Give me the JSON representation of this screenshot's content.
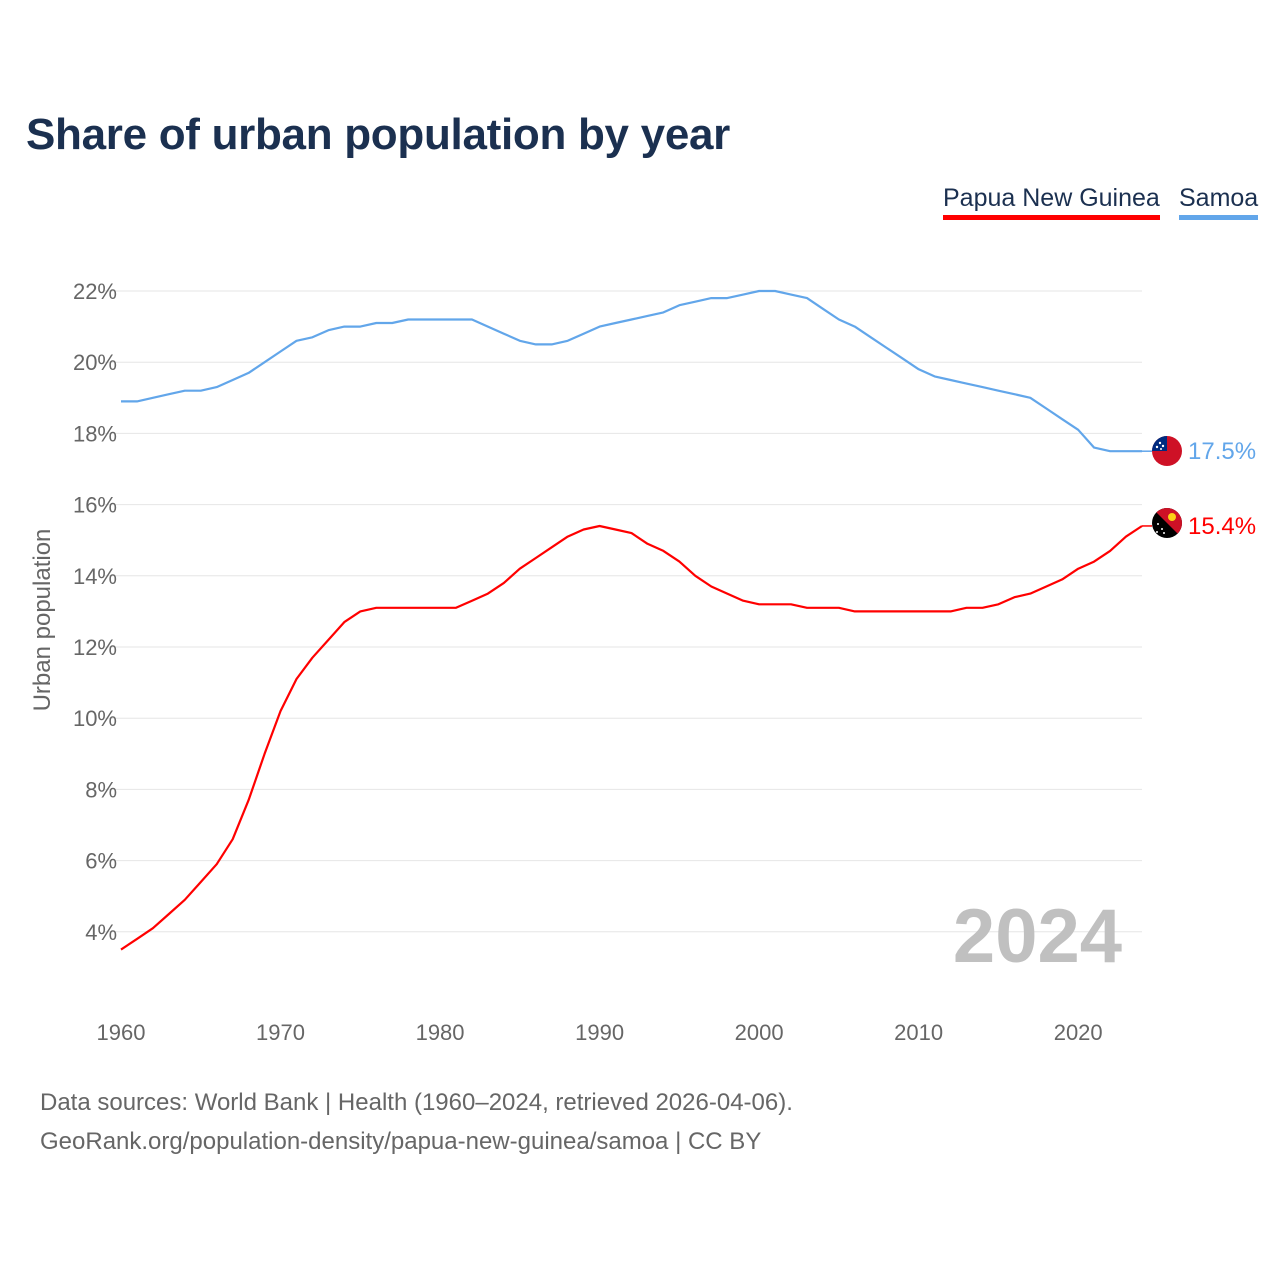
{
  "chart_data": {
    "type": "line",
    "title": "Share of urban population by year",
    "xlabel": "",
    "ylabel": "Urban population",
    "xlim": [
      1960,
      2024
    ],
    "ylim": [
      2,
      23
    ],
    "x_ticks": [
      "1960",
      "1970",
      "1980",
      "1990",
      "2000",
      "2010",
      "2020"
    ],
    "y_ticks": [
      "4%",
      "6%",
      "8%",
      "10%",
      "12%",
      "14%",
      "16%",
      "18%",
      "20%",
      "22%"
    ],
    "grid": true,
    "legend_position": "top-right",
    "year_label": "2024",
    "x": [
      1960,
      1961,
      1962,
      1963,
      1964,
      1965,
      1966,
      1967,
      1968,
      1969,
      1970,
      1971,
      1972,
      1973,
      1974,
      1975,
      1976,
      1977,
      1978,
      1979,
      1980,
      1981,
      1982,
      1983,
      1984,
      1985,
      1986,
      1987,
      1988,
      1989,
      1990,
      1991,
      1992,
      1993,
      1994,
      1995,
      1996,
      1997,
      1998,
      1999,
      2000,
      2001,
      2002,
      2003,
      2004,
      2005,
      2006,
      2007,
      2008,
      2009,
      2010,
      2011,
      2012,
      2013,
      2014,
      2015,
      2016,
      2017,
      2018,
      2019,
      2020,
      2021,
      2022,
      2023,
      2024
    ],
    "series": [
      {
        "name": "Papua New Guinea",
        "color": "#ff0000",
        "end_label": "15.4%",
        "values": [
          3.5,
          3.8,
          4.1,
          4.5,
          4.9,
          5.4,
          5.9,
          6.6,
          7.7,
          9.0,
          10.2,
          11.1,
          11.7,
          12.2,
          12.7,
          13.0,
          13.1,
          13.1,
          13.1,
          13.1,
          13.1,
          13.1,
          13.3,
          13.5,
          13.8,
          14.2,
          14.5,
          14.8,
          15.1,
          15.3,
          15.4,
          15.3,
          15.2,
          14.9,
          14.7,
          14.4,
          14.0,
          13.7,
          13.5,
          13.3,
          13.2,
          13.2,
          13.2,
          13.1,
          13.1,
          13.1,
          13.0,
          13.0,
          13.0,
          13.0,
          13.0,
          13.0,
          13.0,
          13.1,
          13.1,
          13.2,
          13.4,
          13.5,
          13.7,
          13.9,
          14.2,
          14.4,
          14.7,
          15.1,
          15.4
        ]
      },
      {
        "name": "Samoa",
        "color": "#62a6ea",
        "end_label": "17.5%",
        "values": [
          18.9,
          18.9,
          19.0,
          19.1,
          19.2,
          19.2,
          19.3,
          19.5,
          19.7,
          20.0,
          20.3,
          20.6,
          20.7,
          20.9,
          21.0,
          21.0,
          21.1,
          21.1,
          21.2,
          21.2,
          21.2,
          21.2,
          21.2,
          21.0,
          20.8,
          20.6,
          20.5,
          20.5,
          20.6,
          20.8,
          21.0,
          21.1,
          21.2,
          21.3,
          21.4,
          21.6,
          21.7,
          21.8,
          21.8,
          21.9,
          22.0,
          22.0,
          21.9,
          21.8,
          21.5,
          21.2,
          21.0,
          20.7,
          20.4,
          20.1,
          19.8,
          19.6,
          19.5,
          19.4,
          19.3,
          19.2,
          19.1,
          19.0,
          18.7,
          18.4,
          18.1,
          17.6,
          17.5,
          17.5,
          17.5
        ]
      }
    ]
  },
  "footer": {
    "source_line": "Data sources: World Bank | Health (1960–2024, retrieved 2026-04-06).",
    "credit_line": "GeoRank.org/population-density/papua-new-guinea/samoa | CC BY"
  }
}
